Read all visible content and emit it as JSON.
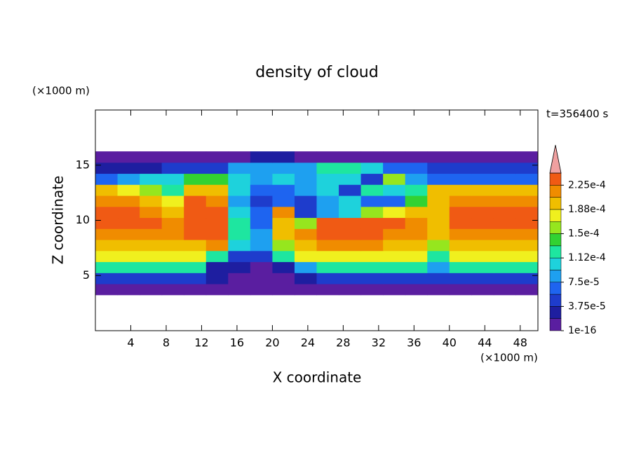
{
  "chart_data": {
    "type": "contour",
    "title": "density of cloud",
    "annotation": "t=356400 s",
    "x_label": "X coordinate",
    "y_label": "Z coordinate",
    "x_unit": "(×1000 m)",
    "y_unit": "(×1000 m)",
    "xlim": [
      0,
      50
    ],
    "ylim": [
      0,
      20
    ],
    "xticks": [
      4,
      8,
      12,
      16,
      20,
      24,
      28,
      32,
      36,
      40,
      44,
      48
    ],
    "yticks": [
      5,
      10,
      15
    ],
    "x": [
      1.25,
      3.75,
      6.25,
      8.75,
      11.25,
      13.75,
      16.25,
      18.75,
      21.25,
      23.75,
      26.25,
      28.75,
      31.25,
      33.75,
      36.25,
      38.75,
      41.25,
      43.75,
      46.25,
      48.75
    ],
    "z": [
      3.75,
      4.75,
      5.75,
      6.75,
      7.75,
      8.75,
      9.75,
      10.75,
      11.75,
      12.75,
      13.75,
      14.75,
      15.75
    ],
    "values": [
      [
        1e-05,
        1e-05,
        1e-05,
        1e-05,
        1e-05,
        1e-05,
        1e-05,
        1e-05,
        1e-05,
        1e-05,
        1e-05,
        1e-05,
        1e-05,
        1e-05,
        1e-05,
        1e-05,
        1e-05,
        1e-05,
        1e-05,
        1e-05
      ],
      [
        4e-05,
        4e-05,
        4e-05,
        4e-05,
        4e-05,
        2e-05,
        1e-05,
        1e-05,
        1e-05,
        2e-05,
        4e-05,
        4e-05,
        4e-05,
        4e-05,
        4e-05,
        4e-05,
        4e-05,
        4e-05,
        4e-05,
        4e-05
      ],
      [
        0.00013,
        0.00013,
        0.00013,
        0.00013,
        0.00012,
        3e-05,
        2e-05,
        1e-05,
        3e-05,
        9e-05,
        0.00013,
        0.00013,
        0.00013,
        0.00013,
        0.00013,
        8e-05,
        0.00013,
        0.00013,
        0.00013,
        0.00013
      ],
      [
        0.00018,
        0.00018,
        0.00018,
        0.00018,
        0.00018,
        0.00012,
        5e-05,
        4e-05,
        0.00012,
        0.00017,
        0.00018,
        0.00018,
        0.00018,
        0.00018,
        0.00018,
        0.00012,
        0.00018,
        0.00018,
        0.00018,
        0.00018
      ],
      [
        0.0002,
        0.0002,
        0.0002,
        0.0002,
        0.0002,
        0.00021,
        0.0001,
        8e-05,
        0.00016,
        0.0002,
        0.00021,
        0.00021,
        0.00021,
        0.0002,
        0.0002,
        0.00015,
        0.0002,
        0.0002,
        0.0002,
        0.0002
      ],
      [
        0.00022,
        0.00022,
        0.00022,
        0.00021,
        0.00023,
        0.00023,
        0.00013,
        9e-05,
        0.0002,
        0.00022,
        0.00023,
        0.00023,
        0.00023,
        0.00022,
        0.00021,
        0.00019,
        0.00022,
        0.00022,
        0.00022,
        0.00022
      ],
      [
        0.00023,
        0.00023,
        0.00023,
        0.00022,
        0.00023,
        0.000235,
        0.00012,
        7e-05,
        0.0002,
        0.00016,
        0.00023,
        0.00023,
        0.00023,
        0.00023,
        0.00021,
        0.0002,
        0.00023,
        0.00023,
        0.00023,
        0.00023
      ],
      [
        0.00023,
        0.00023,
        0.00022,
        0.00019,
        0.00023,
        0.000235,
        0.0001,
        6e-05,
        0.00021,
        5e-05,
        8e-05,
        0.00011,
        0.00016,
        0.00018,
        0.00019,
        0.0002,
        0.00023,
        0.00023,
        0.00023,
        0.00023
      ],
      [
        0.00022,
        0.00021,
        0.0002,
        0.00017,
        0.00023,
        0.00022,
        9e-05,
        5e-05,
        6e-05,
        4e-05,
        8e-05,
        0.0001,
        6e-05,
        7e-05,
        0.00014,
        0.0002,
        0.00022,
        0.00022,
        0.00022,
        0.00022
      ],
      [
        0.00019,
        0.00017,
        0.00015,
        0.00012,
        0.0002,
        0.00019,
        0.0001,
        7e-05,
        6e-05,
        9e-05,
        0.0001,
        5e-05,
        0.00012,
        0.00011,
        0.00013,
        0.00019,
        0.00019,
        0.00019,
        0.00019,
        0.00019
      ],
      [
        7e-05,
        8e-05,
        0.0001,
        0.00011,
        0.00014,
        0.00014,
        0.0001,
        9e-05,
        0.0001,
        9e-05,
        0.0001,
        0.0001,
        5e-05,
        0.00015,
        8e-05,
        6e-05,
        6e-05,
        6e-05,
        6e-05,
        6e-05
      ],
      [
        3e-05,
        3e-05,
        3e-05,
        5e-05,
        5e-05,
        5e-05,
        9e-05,
        9e-05,
        9e-05,
        9e-05,
        0.00012,
        0.00012,
        0.0001,
        7e-05,
        7e-05,
        5e-05,
        5e-05,
        5e-05,
        5e-05,
        5e-05
      ],
      [
        1e-05,
        1e-05,
        1e-05,
        1e-05,
        1e-05,
        1e-05,
        1e-05,
        3e-05,
        3e-05,
        1e-05,
        1e-05,
        1e-05,
        1e-05,
        1e-05,
        1e-05,
        1e-05,
        1e-05,
        1e-05,
        1e-05,
        1e-05
      ]
    ],
    "levels": [
      1e-16,
      1.875e-05,
      3.75e-05,
      5.625e-05,
      7.5e-05,
      9.375e-05,
      0.0001125,
      0.00013125,
      0.00015,
      0.00016875,
      0.0001875,
      0.00020625,
      0.000225,
      0.00024375
    ],
    "colors": [
      "#5a1ea0",
      "#1e1ea0",
      "#1e3ccc",
      "#1e64f0",
      "#1ea0f0",
      "#1ed2dc",
      "#1ee6a0",
      "#32d232",
      "#96e61e",
      "#f0f01e",
      "#f0be00",
      "#f08c00",
      "#f05a14",
      "#f01e1e"
    ],
    "extend_color": "#f0a0a0",
    "colorbar_ticks": [
      {
        "value": 1e-16,
        "label": "1e-16"
      },
      {
        "value": 3.75e-05,
        "label": "3.75e-5"
      },
      {
        "value": 7.5e-05,
        "label": "7.5e-5"
      },
      {
        "value": 0.0001125,
        "label": "1.12e-4"
      },
      {
        "value": 0.00015,
        "label": "1.5e-4"
      },
      {
        "value": 0.0001875,
        "label": "1.88e-4"
      },
      {
        "value": 0.000225,
        "label": "2.25e-4"
      }
    ]
  }
}
